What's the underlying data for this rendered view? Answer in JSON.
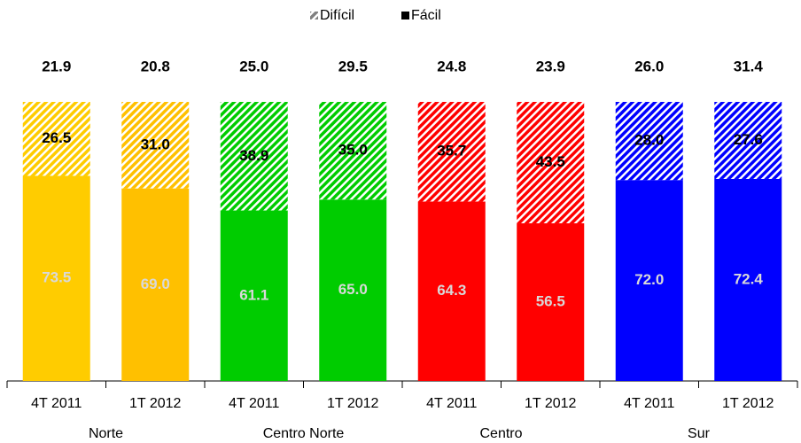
{
  "chart_data": {
    "type": "stacked-bar",
    "categories": [
      "4T 2011",
      "1T 2012",
      "4T 2011",
      "1T 2012",
      "4T 2011",
      "1T 2012",
      "4T 2011",
      "1T 2012"
    ],
    "groups": [
      "Norte",
      "Centro Norte",
      "Centro",
      "Sur"
    ],
    "bar_colors": [
      "#FFCC00",
      "#FFC000",
      "#00CC00",
      "#00CC00",
      "#FF0000",
      "#FF0000",
      "#0000FF",
      "#0000FF"
    ],
    "top_labels": {
      "values": [
        21.9,
        20.8,
        25,
        29.5,
        24.8,
        23.9,
        26,
        31.4
      ],
      "value_labels": [
        "21.9",
        "20.8",
        "25.0",
        "29.5",
        "24.8",
        "23.9",
        "26.0",
        "31.4"
      ]
    },
    "series": [
      {
        "name": "Fácil",
        "color": "#000000",
        "values": [
          73.5,
          69,
          61.1,
          65,
          64.3,
          56.5,
          72,
          72.4
        ],
        "value_labels": [
          "73.5",
          "69.0",
          "61.1",
          "65.0",
          "64.3",
          "56.5",
          "72.0",
          "72.4"
        ]
      },
      {
        "name": "Difícil",
        "color": "#808080",
        "hatched": true,
        "values": [
          26.5,
          31,
          38.9,
          35,
          35.7,
          43.5,
          28,
          27.6
        ],
        "value_labels": [
          "26.5",
          "31.0",
          "38.9",
          "35.0",
          "35.7",
          "43.5",
          "28.0",
          "27.6"
        ]
      }
    ],
    "ylim": [
      0,
      100
    ]
  }
}
